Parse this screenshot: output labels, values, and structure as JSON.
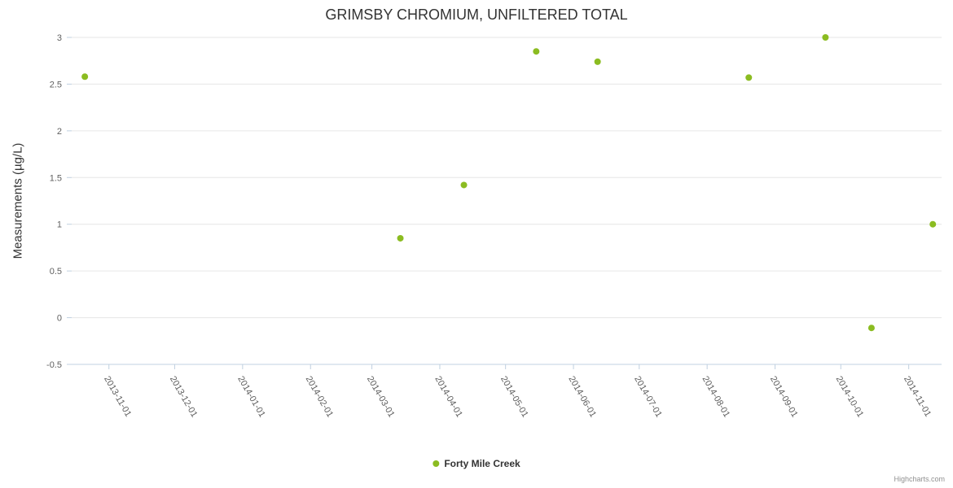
{
  "chart_data": {
    "type": "scatter",
    "title": "GRIMSBY CHROMIUM, UNFILTERED TOTAL",
    "xlabel": "",
    "ylabel": "Measurements (µg/L)",
    "ylim": [
      -0.5,
      3
    ],
    "yticks": [
      -0.5,
      0,
      0.5,
      1,
      1.5,
      2,
      2.5,
      3
    ],
    "xticks": [
      "2013-11-01",
      "2013-12-01",
      "2014-01-01",
      "2014-02-01",
      "2014-03-01",
      "2014-04-01",
      "2014-05-01",
      "2014-06-01",
      "2014-07-01",
      "2014-08-01",
      "2014-09-01",
      "2014-10-01",
      "2014-11-01"
    ],
    "x_range": [
      "2013-10-15",
      "2014-11-16"
    ],
    "grid": "horizontal",
    "legend_position": "bottom-center",
    "series": [
      {
        "name": "Forty Mile Creek",
        "color": "#8bbc21",
        "marker": "circle",
        "points": [
          {
            "x": "2013-10-21",
            "y": 2.58
          },
          {
            "x": "2014-03-14",
            "y": 0.85
          },
          {
            "x": "2014-04-12",
            "y": 1.42
          },
          {
            "x": "2014-05-15",
            "y": 2.85
          },
          {
            "x": "2014-06-12",
            "y": 2.74
          },
          {
            "x": "2014-08-20",
            "y": 2.57
          },
          {
            "x": "2014-09-24",
            "y": 3.0
          },
          {
            "x": "2014-10-15",
            "y": -0.11
          },
          {
            "x": "2014-11-12",
            "y": 1.0
          }
        ]
      }
    ]
  },
  "legend": {
    "series_name": "Forty Mile Creek"
  },
  "credit": "Highcharts.com",
  "colors": {
    "point": "#8bbc21",
    "grid": "#e6e6e6",
    "axis_line": "#c0d0e0",
    "tick_label": "#606060",
    "title": "#333333",
    "credit": "#909090"
  }
}
